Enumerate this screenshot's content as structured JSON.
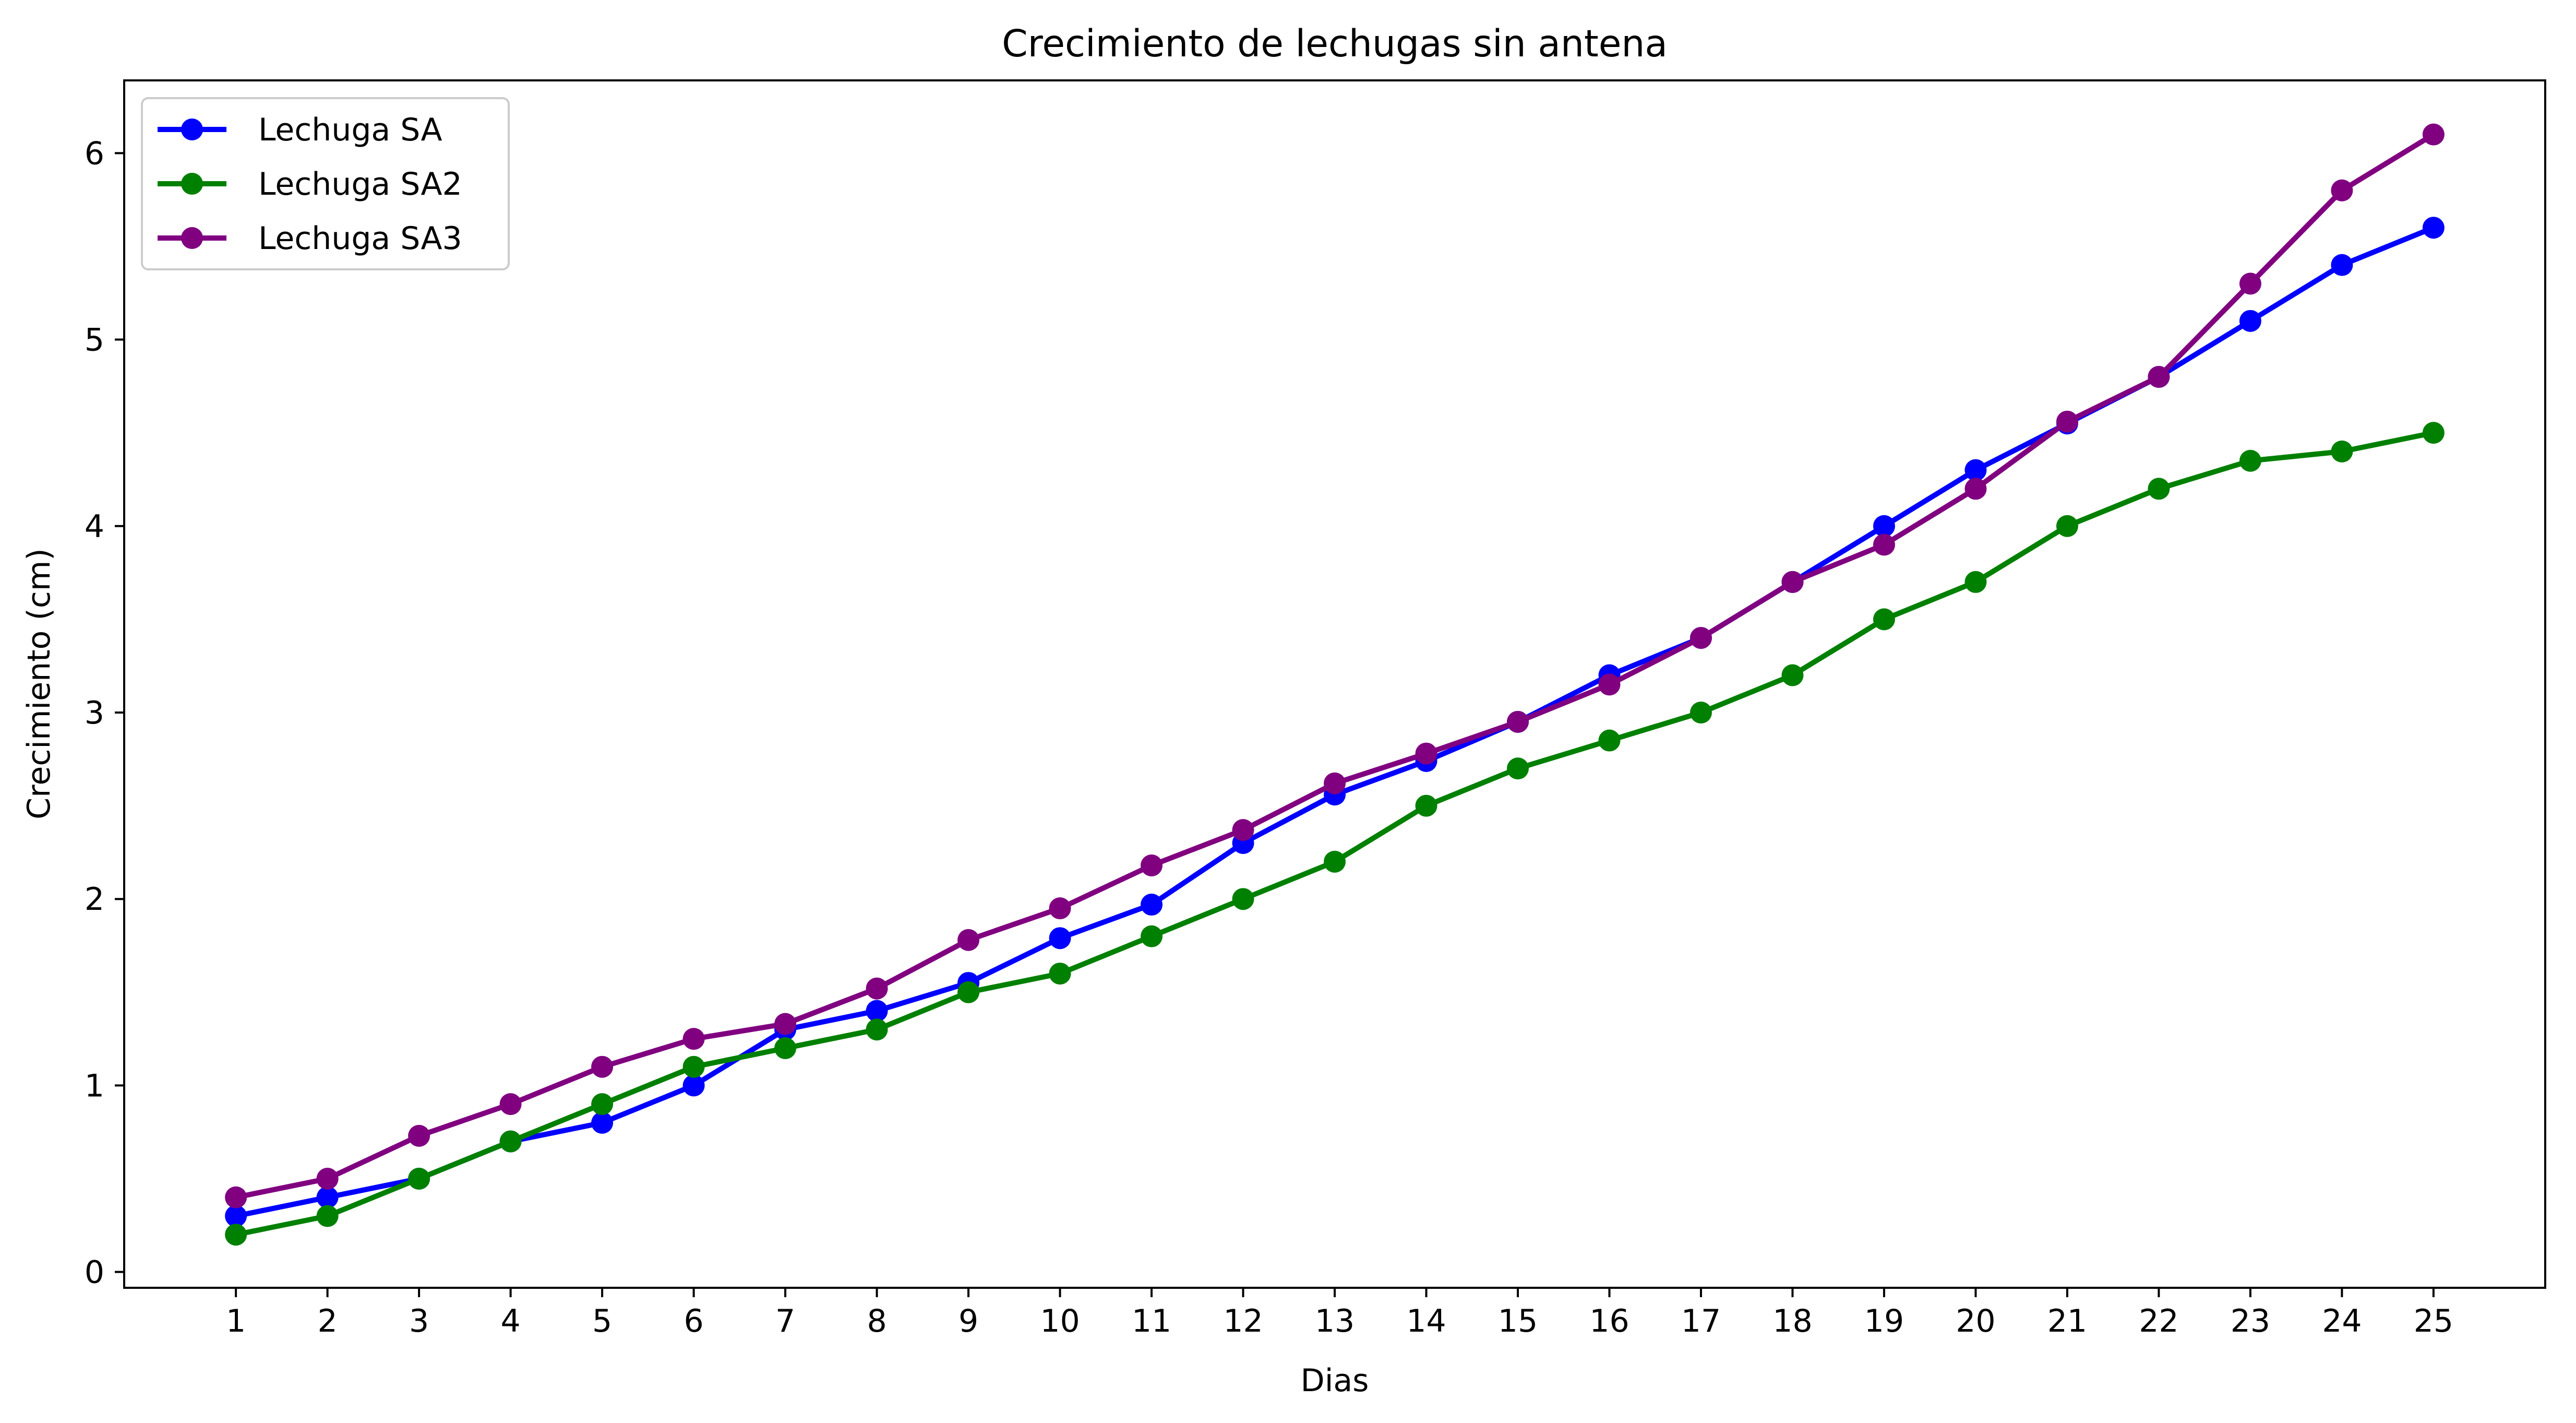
{
  "chart_data": {
    "type": "line",
    "title": "Crecimiento de lechugas sin antena",
    "xlabel": "Dias",
    "ylabel": "Crecimiento (cm)",
    "x": [
      1,
      2,
      3,
      4,
      5,
      6,
      7,
      8,
      9,
      10,
      11,
      12,
      13,
      14,
      15,
      16,
      17,
      18,
      19,
      20,
      21,
      22,
      23,
      24,
      25
    ],
    "x_tick_labels": [
      "1",
      "2",
      "3",
      "4",
      "5",
      "6",
      "7",
      "8",
      "9",
      "10",
      "11",
      "12",
      "13",
      "14",
      "15",
      "16",
      "17",
      "18",
      "19",
      "20",
      "21",
      "22",
      "23",
      "24",
      "25"
    ],
    "y_tick_labels": [
      "0",
      "1",
      "2",
      "3",
      "4",
      "5",
      "6"
    ],
    "y_ticks": [
      0,
      1,
      2,
      3,
      4,
      5,
      6
    ],
    "xlim": [
      -0.22,
      26.22
    ],
    "ylim": [
      -0.085,
      6.39
    ],
    "grid": false,
    "legend_position": "top-left",
    "series": [
      {
        "name": "Lechuga SA",
        "color": "#0000ff",
        "marker": "circle",
        "values": [
          0.3,
          0.4,
          0.5,
          0.7,
          0.8,
          1.0,
          1.3,
          1.4,
          1.55,
          1.79,
          1.97,
          2.3,
          2.56,
          2.74,
          2.95,
          3.2,
          3.4,
          3.7,
          4.0,
          4.3,
          4.55,
          4.8,
          5.1,
          5.4,
          5.6
        ]
      },
      {
        "name": "Lechuga SA2",
        "color": "#008000",
        "marker": "circle",
        "values": [
          0.2,
          0.3,
          0.5,
          0.7,
          0.9,
          1.1,
          1.2,
          1.3,
          1.5,
          1.6,
          1.8,
          2.0,
          2.2,
          2.5,
          2.7,
          2.85,
          3.0,
          3.2,
          3.5,
          3.7,
          4.0,
          4.2,
          4.35,
          4.4,
          4.5
        ]
      },
      {
        "name": "Lechuga SA3",
        "color": "#800080",
        "marker": "circle",
        "values": [
          0.4,
          0.5,
          0.73,
          0.9,
          1.1,
          1.25,
          1.33,
          1.52,
          1.78,
          1.95,
          2.18,
          2.37,
          2.62,
          2.78,
          2.95,
          3.15,
          3.4,
          3.7,
          3.9,
          4.2,
          4.56,
          4.8,
          5.3,
          5.8,
          6.1
        ]
      }
    ]
  }
}
